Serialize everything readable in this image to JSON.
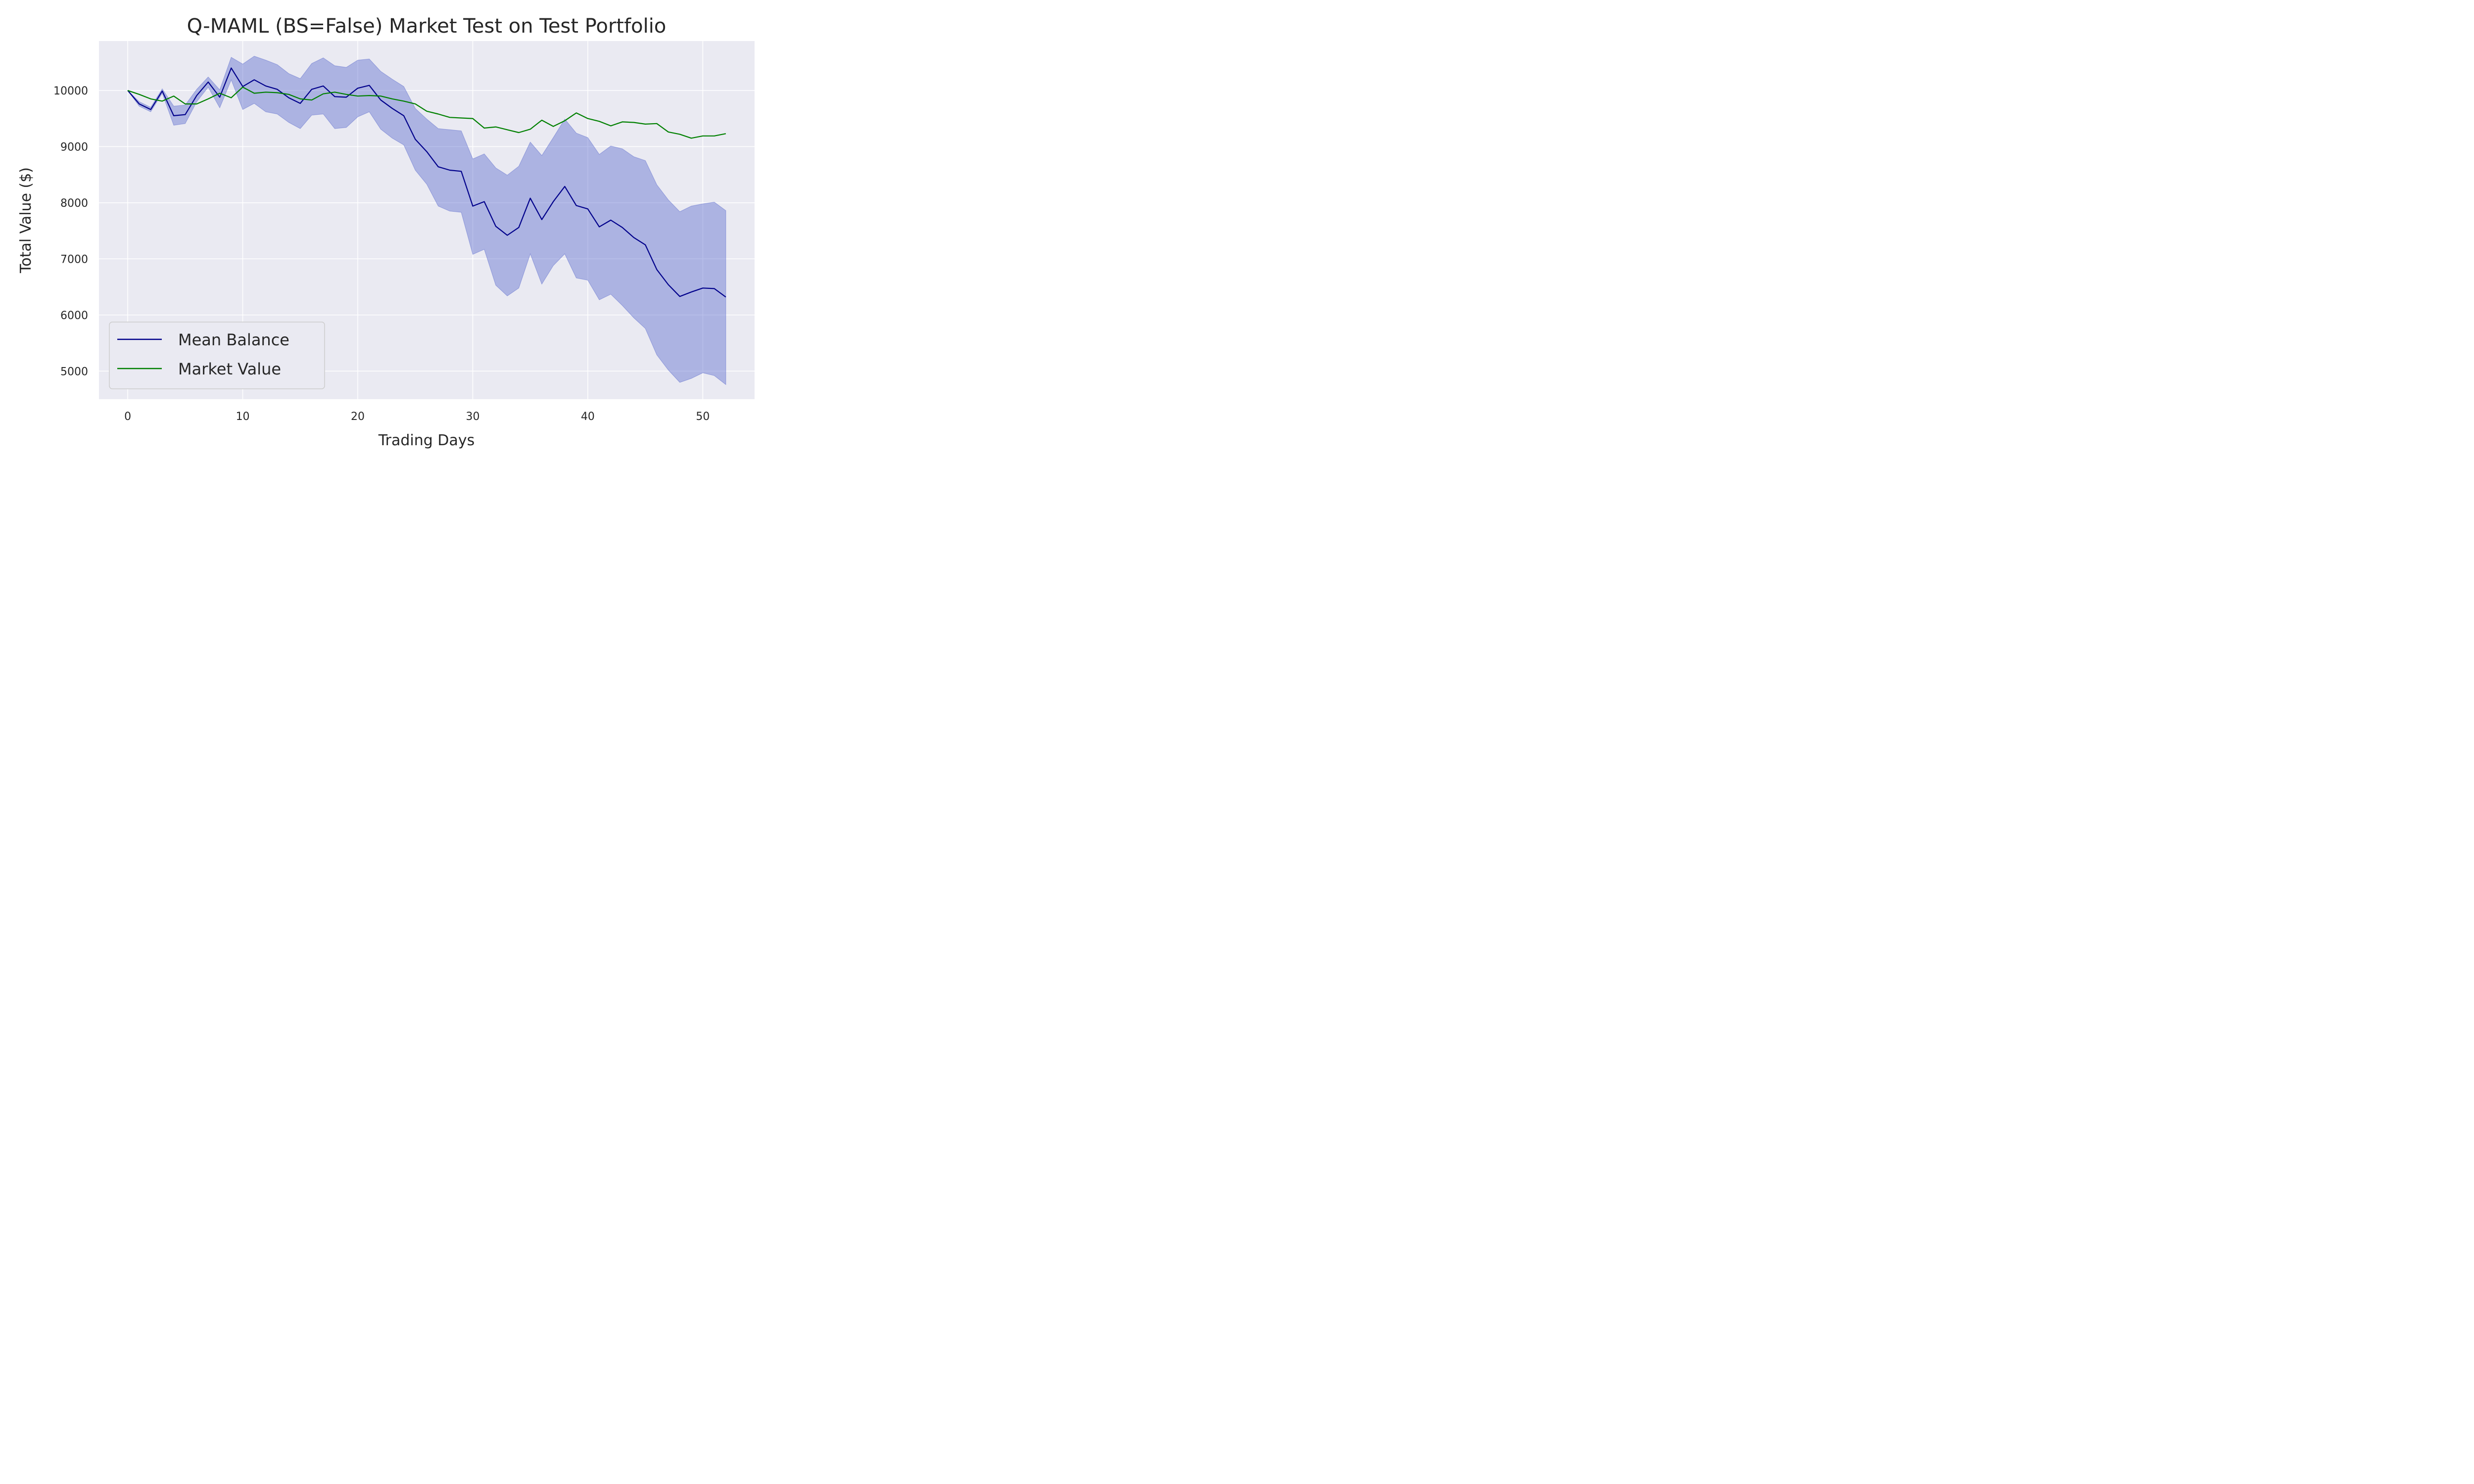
{
  "chart_data": {
    "type": "line",
    "title": "Q-MAML (BS=False) Market Test on Test Portfolio",
    "xlabel": "Trading Days",
    "ylabel": "Total Value ($)",
    "xlim": [
      -2.5,
      54.5
    ],
    "ylim": [
      4500,
      10880
    ],
    "x_ticks": [
      0,
      10,
      20,
      30,
      40,
      50
    ],
    "y_ticks": [
      5000,
      6000,
      7000,
      8000,
      9000,
      10000
    ],
    "grid": true,
    "legend_position": "lower-left",
    "colors": {
      "plot_background": "#eaeaf2",
      "grid": "#ffffff",
      "mean_line": "#00008b",
      "market_line": "#008000",
      "band_fill": "#5566cc"
    },
    "x": [
      0,
      1,
      2,
      3,
      4,
      5,
      6,
      7,
      8,
      9,
      10,
      11,
      12,
      13,
      14,
      15,
      16,
      17,
      18,
      19,
      20,
      21,
      22,
      23,
      24,
      25,
      26,
      27,
      28,
      29,
      30,
      31,
      32,
      33,
      34,
      35,
      36,
      37,
      38,
      39,
      40,
      41,
      42,
      43,
      44,
      45,
      46,
      47,
      48,
      49,
      50,
      51,
      52
    ],
    "series": [
      {
        "name": "Mean Balance",
        "values": [
          10000,
          9760,
          9660,
          9990,
          9550,
          9570,
          9910,
          10150,
          9880,
          10400,
          10070,
          10190,
          10080,
          10020,
          9870,
          9770,
          10020,
          10080,
          9890,
          9880,
          10040,
          10090,
          9830,
          9680,
          9550,
          9130,
          8910,
          8640,
          8580,
          8560,
          7940,
          8020,
          7580,
          7420,
          7560,
          8080,
          7700,
          8020,
          8290,
          7950,
          7890,
          7570,
          7690,
          7560,
          7380,
          7250,
          6810,
          6540,
          6330,
          6410,
          6480,
          6470,
          6320
        ]
      },
      {
        "name": "Market Value",
        "values": [
          10000,
          9930,
          9850,
          9810,
          9900,
          9760,
          9760,
          9850,
          9950,
          9870,
          10060,
          9950,
          9970,
          9960,
          9930,
          9850,
          9830,
          9940,
          9970,
          9930,
          9900,
          9910,
          9900,
          9850,
          9810,
          9760,
          9630,
          9580,
          9520,
          9510,
          9500,
          9330,
          9350,
          9300,
          9250,
          9310,
          9470,
          9360,
          9460,
          9600,
          9500,
          9450,
          9370,
          9440,
          9430,
          9400,
          9410,
          9260,
          9220,
          9150,
          9190,
          9190,
          9230
        ]
      }
    ],
    "band": {
      "upper": [
        10000,
        9800,
        9700,
        10030,
        9720,
        9740,
        10020,
        10240,
        10010,
        10590,
        10470,
        10610,
        10540,
        10460,
        10300,
        10210,
        10480,
        10580,
        10440,
        10410,
        10540,
        10560,
        10340,
        10200,
        10070,
        9680,
        9490,
        9320,
        9300,
        9280,
        8780,
        8870,
        8620,
        8490,
        8650,
        9080,
        8840,
        9160,
        9490,
        9240,
        9160,
        8860,
        9010,
        8960,
        8820,
        8750,
        8320,
        8050,
        7840,
        7940,
        7980,
        8010,
        7860
      ],
      "lower": [
        10000,
        9720,
        9620,
        9950,
        9380,
        9410,
        9800,
        10060,
        9690,
        10190,
        9660,
        9770,
        9620,
        9580,
        9430,
        9320,
        9560,
        9580,
        9320,
        9340,
        9530,
        9620,
        9310,
        9150,
        9030,
        8580,
        8330,
        7940,
        7850,
        7830,
        7080,
        7170,
        6530,
        6340,
        6480,
        7090,
        6550,
        6880,
        7090,
        6660,
        6620,
        6270,
        6370,
        6170,
        5950,
        5760,
        5290,
        5020,
        4800,
        4870,
        4970,
        4920,
        4760
      ]
    },
    "legend": [
      "Mean Balance",
      "Market Value"
    ]
  }
}
